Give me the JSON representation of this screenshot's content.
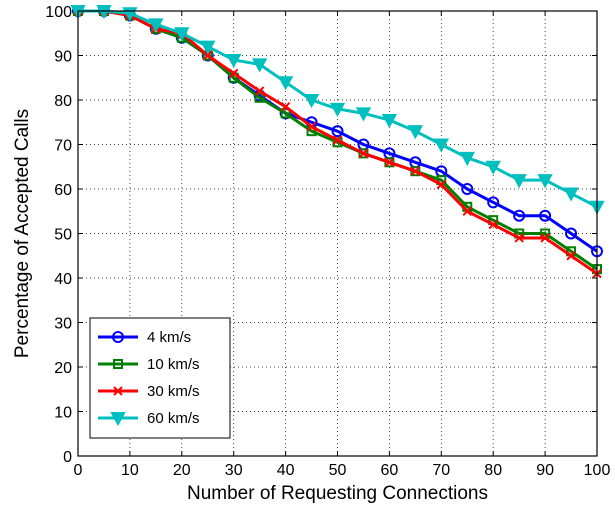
{
  "chart_data": {
    "type": "line",
    "title": "",
    "xlabel": "Number of Requesting Connections",
    "ylabel": "Percentage of Accepted Calls",
    "xlim": [
      0,
      100
    ],
    "ylim": [
      0,
      100
    ],
    "xticks": [
      0,
      10,
      20,
      30,
      40,
      50,
      60,
      70,
      80,
      90,
      100
    ],
    "yticks": [
      0,
      10,
      20,
      30,
      40,
      50,
      60,
      70,
      80,
      90,
      100
    ],
    "grid": true,
    "legend_position": "bottom-left",
    "x": [
      0,
      5,
      10,
      15,
      20,
      25,
      30,
      35,
      40,
      45,
      50,
      55,
      60,
      65,
      70,
      75,
      80,
      85,
      90,
      95,
      100
    ],
    "series": [
      {
        "name": "4 km/s",
        "color": "#0000ff",
        "marker": "circle",
        "values": [
          100,
          100,
          99,
          96,
          94,
          90,
          85,
          81,
          77,
          75,
          73,
          70,
          68,
          66,
          64,
          60,
          57,
          54,
          54,
          50,
          46
        ]
      },
      {
        "name": "10 km/s",
        "color": "#008000",
        "marker": "square",
        "values": [
          100,
          100,
          99,
          96,
          94,
          90,
          85,
          80.5,
          77,
          73,
          70.5,
          68,
          66,
          64,
          62,
          56,
          53,
          50,
          50,
          46,
          42
        ]
      },
      {
        "name": "30 km/s",
        "color": "#ff0000",
        "marker": "x",
        "values": [
          100,
          100,
          99,
          96,
          95,
          90,
          86,
          82,
          78.5,
          74,
          71,
          68,
          66,
          64,
          61,
          55,
          52,
          49,
          49,
          45,
          41
        ]
      },
      {
        "name": "60 km/s",
        "color": "#00bfbf",
        "marker": "triangle-down",
        "values": [
          100,
          100,
          99.5,
          97,
          95,
          92,
          89,
          88,
          84,
          80,
          78,
          77,
          75.5,
          73,
          70,
          67,
          65,
          62,
          62,
          59,
          56
        ]
      }
    ]
  }
}
